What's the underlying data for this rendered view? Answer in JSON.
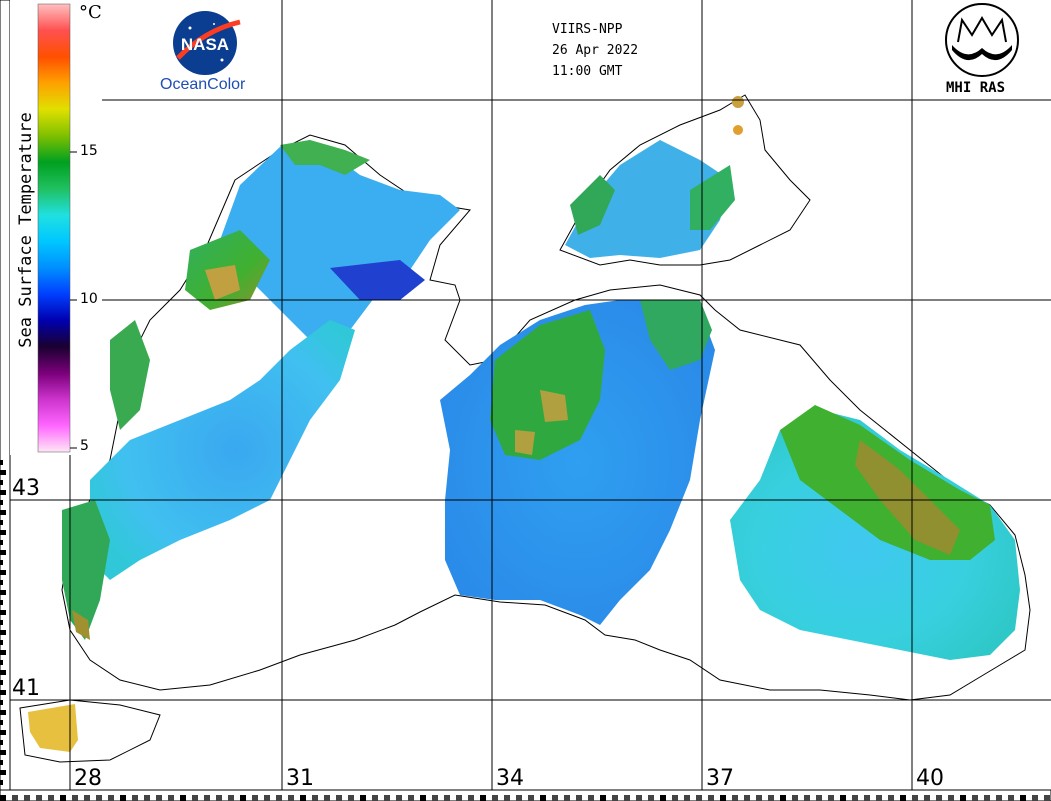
{
  "header": {
    "satellite": "VIIRS-NPP",
    "date": "26 Apr 2022",
    "time": "11:00 GMT"
  },
  "logos": {
    "nasa_text": "NASA",
    "oceancolor_text": "OceanColor",
    "mhi_text": "MHI RAS"
  },
  "colorbar": {
    "title": "Sea Surface Temperature",
    "unit": "°C",
    "ticks": [
      "15",
      "10",
      "5"
    ],
    "min": 5,
    "max": 20,
    "colors": [
      "#ffe6f5",
      "#ff66ff",
      "#cc33cc",
      "#7a007a",
      "#1a0030",
      "#0000b0",
      "#0040ff",
      "#0090ff",
      "#00c8ff",
      "#20e0e0",
      "#20c060",
      "#00a020",
      "#80c000",
      "#e0e000",
      "#ffa000",
      "#ff5000",
      "#ff5050",
      "#ffc0c0"
    ]
  },
  "map": {
    "lat_labels": [
      "43",
      "41"
    ],
    "lon_labels": [
      "28",
      "31",
      "34",
      "37",
      "40"
    ]
  }
}
